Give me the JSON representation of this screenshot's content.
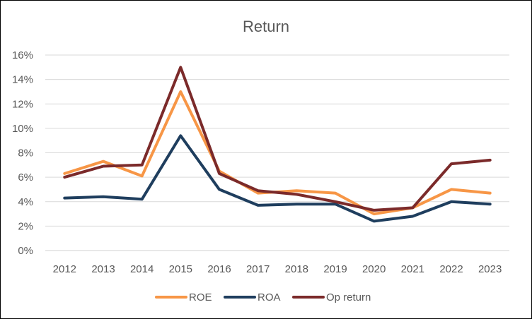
{
  "chart_data": {
    "type": "line",
    "title": "Return",
    "xlabel": "",
    "ylabel": "",
    "categories": [
      "2012",
      "2013",
      "2014",
      "2015",
      "2016",
      "2017",
      "2018",
      "2019",
      "2020",
      "2021",
      "2022",
      "2023"
    ],
    "ylim": [
      0,
      16
    ],
    "yticks": [
      "0%",
      "2%",
      "4%",
      "6%",
      "8%",
      "10%",
      "12%",
      "14%",
      "16%"
    ],
    "grid": true,
    "legend": "bottom",
    "series": [
      {
        "name": "ROE",
        "color": "#F79646",
        "values": [
          6.3,
          7.3,
          6.1,
          13.0,
          6.5,
          4.7,
          4.9,
          4.7,
          3.0,
          3.5,
          5.0,
          4.7
        ]
      },
      {
        "name": "ROA",
        "color": "#1F3E5E",
        "values": [
          4.3,
          4.4,
          4.2,
          9.4,
          5.0,
          3.7,
          3.8,
          3.8,
          2.4,
          2.8,
          4.0,
          3.8
        ]
      },
      {
        "name": "Op return",
        "color": "#7B2A2A",
        "values": [
          6.0,
          6.9,
          7.0,
          15.0,
          6.3,
          4.9,
          4.6,
          4.0,
          3.3,
          3.5,
          7.1,
          7.4
        ]
      }
    ]
  }
}
